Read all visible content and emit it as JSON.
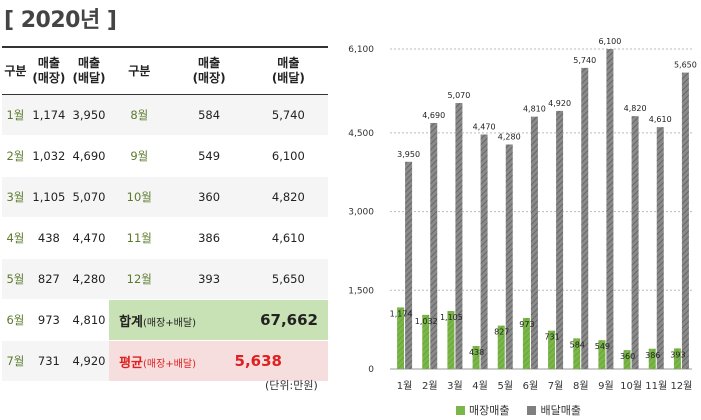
{
  "title": "[ 2020년 ]",
  "table": {
    "headers": {
      "col_month": "구분",
      "col_store": [
        "매출",
        "(매장)"
      ],
      "col_delivery": [
        "매출",
        "(배달)"
      ]
    },
    "left_rows": [
      {
        "month": "1월",
        "store": "1,174",
        "delivery": "3,950"
      },
      {
        "month": "2월",
        "store": "1,032",
        "delivery": "4,690"
      },
      {
        "month": "3월",
        "store": "1,105",
        "delivery": "5,070"
      },
      {
        "month": "4월",
        "store": "438",
        "delivery": "4,470"
      },
      {
        "month": "5월",
        "store": "827",
        "delivery": "4,280"
      },
      {
        "month": "6월",
        "store": "973",
        "delivery": "4,810"
      },
      {
        "month": "7월",
        "store": "731",
        "delivery": "4,920"
      }
    ],
    "right_rows": [
      {
        "month": "8월",
        "store": "584",
        "delivery": "5,740"
      },
      {
        "month": "9월",
        "store": "549",
        "delivery": "6,100"
      },
      {
        "month": "10월",
        "store": "360",
        "delivery": "4,820"
      },
      {
        "month": "11월",
        "store": "386",
        "delivery": "4,610"
      },
      {
        "month": "12월",
        "store": "393",
        "delivery": "5,650"
      }
    ],
    "sum": {
      "label": "합계",
      "sub": "(매장+배달)",
      "value": "67,662"
    },
    "avg": {
      "label": "평균",
      "sub": "(매장+배달)",
      "value": "5,638"
    },
    "unit_note": "(단위:만원)"
  },
  "chart_data": {
    "type": "bar",
    "categories": [
      "1월",
      "2월",
      "3월",
      "4월",
      "5월",
      "6월",
      "7월",
      "8월",
      "9월",
      "10월",
      "11월",
      "12월"
    ],
    "series": [
      {
        "name": "매장매출",
        "values": [
          1174,
          1032,
          1105,
          438,
          827,
          973,
          731,
          584,
          549,
          360,
          386,
          393
        ],
        "color": "#7ab648"
      },
      {
        "name": "배달매출",
        "values": [
          3950,
          4690,
          5070,
          4470,
          4280,
          4810,
          4920,
          5740,
          6100,
          4820,
          4610,
          5650
        ],
        "color": "#7f7f7f"
      }
    ],
    "data_labels": {
      "store": [
        "1,174",
        "1,032",
        "1,105",
        "438",
        "827",
        "973",
        "731",
        "584",
        "549",
        "360",
        "386",
        "393"
      ],
      "delivery": [
        "3,950",
        "4,690",
        "5,070",
        "4,470",
        "4,280",
        "4,810",
        "4,920",
        "5,740",
        "6,100",
        "4,820",
        "4,610",
        "5,650"
      ]
    },
    "yticks": [
      0,
      1500,
      3000,
      4500,
      6100
    ],
    "ytick_labels": [
      "0",
      "1,500",
      "3,000",
      "4,500",
      "6,100"
    ],
    "ylim": [
      0,
      6100
    ],
    "grid": true,
    "legend_position": "bottom"
  }
}
